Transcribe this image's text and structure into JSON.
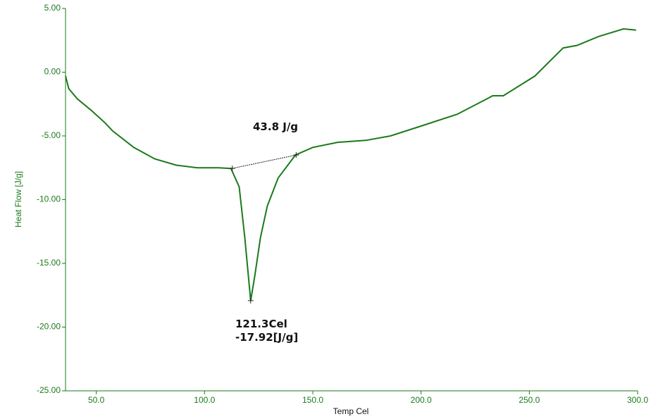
{
  "chart_data": {
    "type": "line",
    "x_label": "Temp Cel",
    "y_label": "Heat Flow [J/g]",
    "xlim": [
      35.8,
      300
    ],
    "ylim": [
      -25,
      5
    ],
    "xticks": [
      {
        "value": 50,
        "label": "50.0"
      },
      {
        "value": 100,
        "label": "100.0"
      },
      {
        "value": 150,
        "label": "150.0"
      },
      {
        "value": 200,
        "label": "200.0"
      },
      {
        "value": 250,
        "label": "250.0"
      },
      {
        "value": 300,
        "label": "300.0"
      }
    ],
    "yticks": [
      {
        "value": 5,
        "label": "5.00"
      },
      {
        "value": 0,
        "label": "0.00"
      },
      {
        "value": -5,
        "label": "-5.00"
      },
      {
        "value": -10,
        "label": "-10.00"
      },
      {
        "value": -15,
        "label": "-15.00"
      },
      {
        "value": -20,
        "label": "-20.00"
      },
      {
        "value": -25,
        "label": "-25.00"
      }
    ],
    "color": "#1a7a1a",
    "x": [
      35.8,
      37.3,
      41.3,
      47.7,
      54.2,
      57.5,
      67.3,
      77,
      87,
      96.6,
      106.4,
      112.2,
      116,
      118.6,
      121.3,
      123.2,
      125.8,
      129,
      134,
      142,
      150,
      161.5,
      174.5,
      185.9,
      200.5,
      216.7,
      231.4,
      233,
      238,
      252.6,
      265.6,
      272,
      282,
      293.5,
      299.3
    ],
    "values": [
      -0.3,
      -1.3,
      -2.1,
      -3.0,
      -4.0,
      -4.6,
      -5.9,
      -6.8,
      -7.3,
      -7.5,
      -7.5,
      -7.55,
      -9,
      -13,
      -17.92,
      -16,
      -13,
      -10.5,
      -8.3,
      -6.5,
      -5.9,
      -5.5,
      -5.35,
      -5.0,
      -4.2,
      -3.3,
      -2.0,
      -1.85,
      -1.85,
      -0.3,
      1.9,
      2.1,
      2.8,
      3.4,
      3.3
    ],
    "peak": {
      "x": 121.3,
      "y": -17.92
    },
    "baseline": {
      "x": [
        112.8,
        142.3
      ],
      "y": [
        -7.55,
        -6.5
      ]
    },
    "annotations": {
      "area": "43.8 J/g",
      "peak_temp": "121.3Cel",
      "peak_value": "-17.92[J/g]"
    }
  }
}
